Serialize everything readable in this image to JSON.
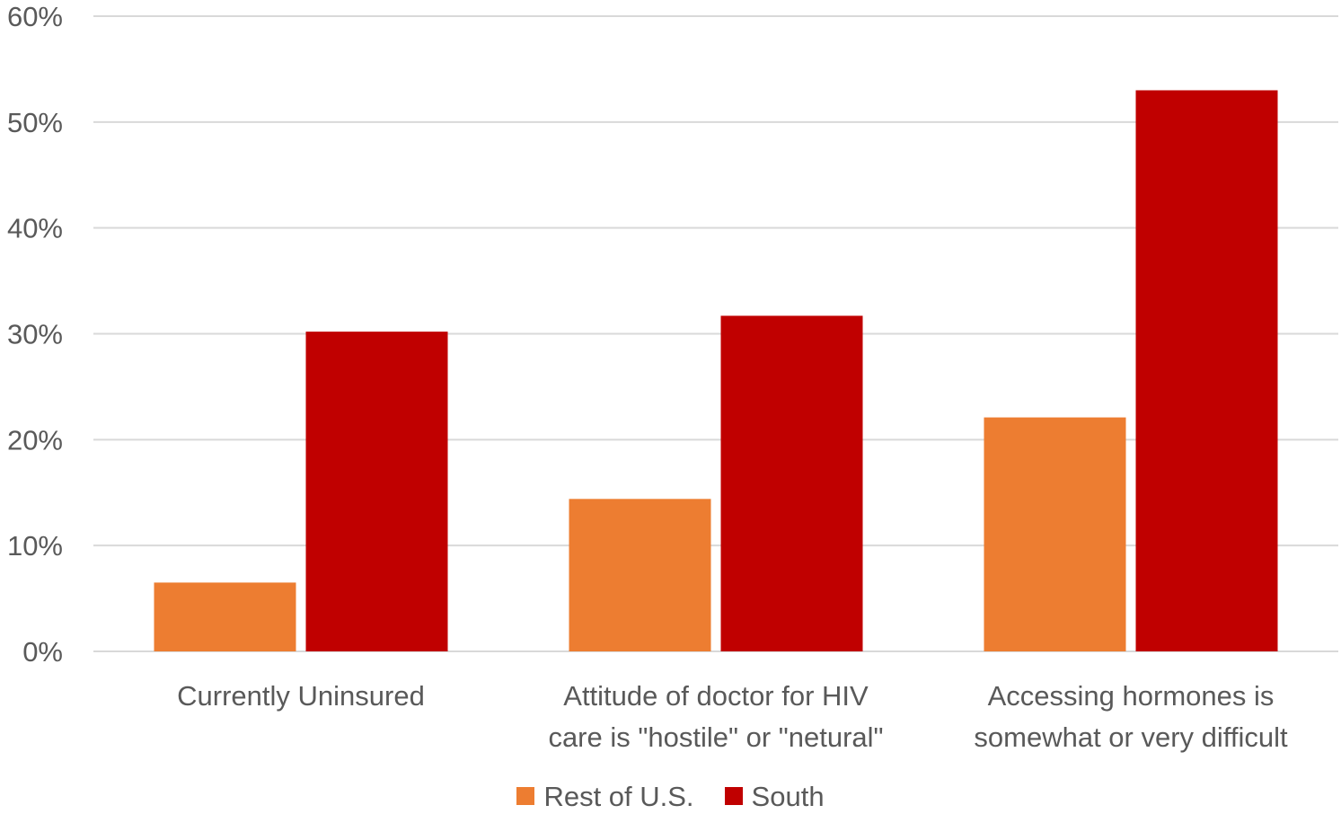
{
  "chart_data": {
    "type": "bar",
    "categories": [
      [
        "Currently Uninsured"
      ],
      [
        "Attitude of doctor for HIV",
        "care is \"hostile\" or \"netural\""
      ],
      [
        "Accessing hormones is",
        "somewhat or very difficult"
      ]
    ],
    "series": [
      {
        "name": "Rest of U.S.",
        "color": "#ED7D31",
        "values": [
          6.5,
          14.4,
          22.1
        ]
      },
      {
        "name": "South",
        "color": "#C00000",
        "values": [
          30.2,
          31.7,
          53.0
        ]
      }
    ],
    "ylim": [
      0,
      60
    ],
    "yticks": [
      "0%",
      "10%",
      "20%",
      "30%",
      "40%",
      "50%",
      "60%"
    ],
    "ytick_values": [
      0,
      10,
      20,
      30,
      40,
      50,
      60
    ],
    "grid": true,
    "legend_position": "bottom"
  }
}
